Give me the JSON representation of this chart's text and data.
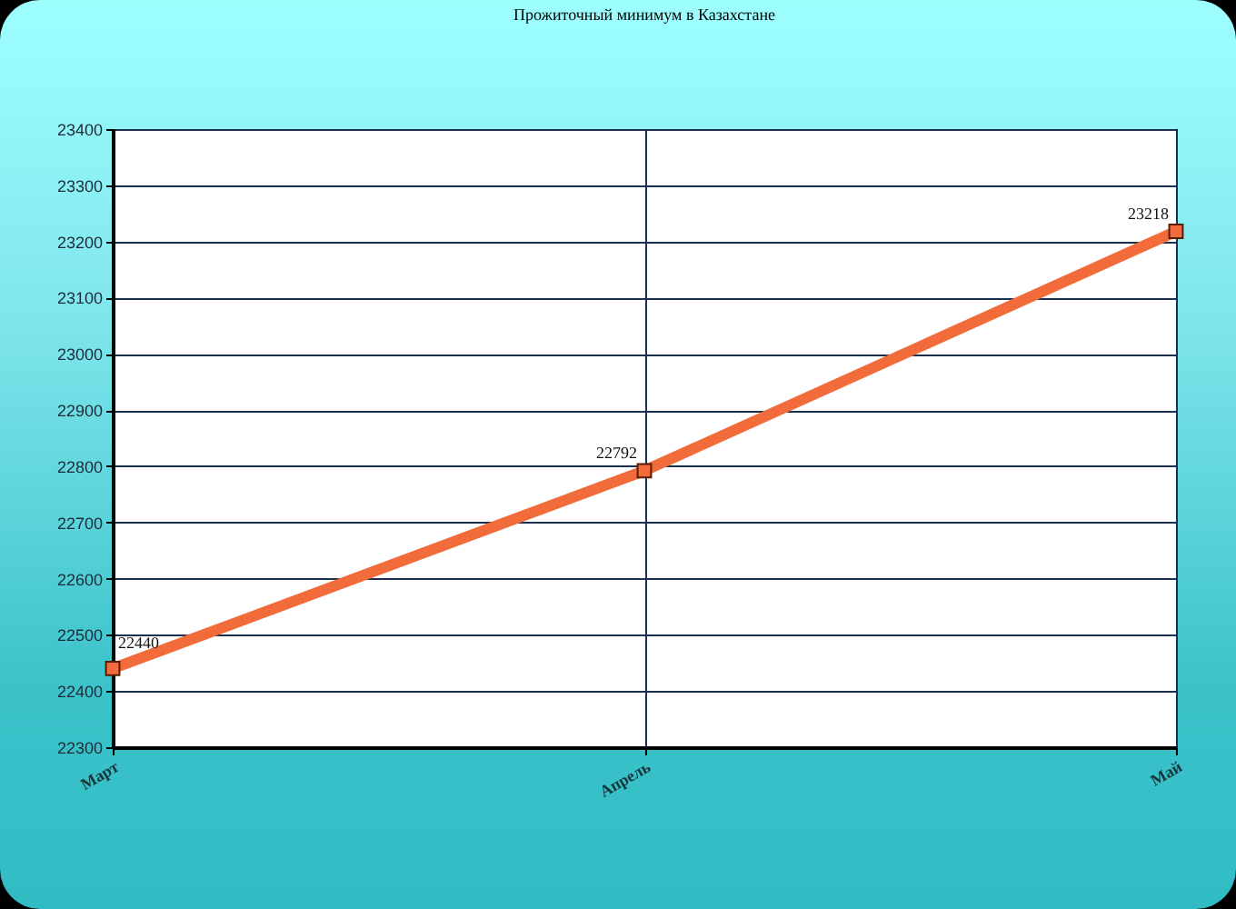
{
  "chart_data": {
    "type": "line",
    "title": "Прожиточный минимум в Казахстане",
    "categories": [
      "Март",
      "Апрель",
      "Май"
    ],
    "series": [
      {
        "color": "#f26b3a",
        "values": [
          22440,
          22792,
          23218
        ]
      }
    ],
    "ylim": [
      22300,
      23400
    ],
    "yticks": [
      22300,
      22400,
      22500,
      22600,
      22700,
      22800,
      22900,
      23000,
      23100,
      23200,
      23300,
      23400
    ],
    "grid": true,
    "marker": "square",
    "data_labels": true
  }
}
